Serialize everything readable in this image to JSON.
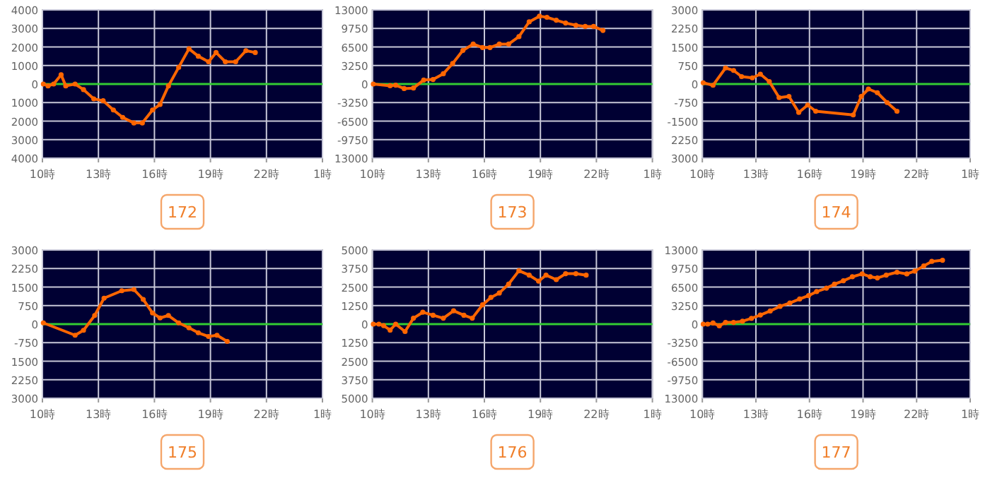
{
  "chart_data": [
    {
      "type": "line",
      "title": "172",
      "xlim": [
        "2000-01-01T10:00",
        "2000-01-02T01:00"
      ],
      "xticks": [
        {
          "value": "2000-01-01T10:00",
          "label": "10時"
        },
        {
          "value": "2000-01-01T13:00",
          "label": "13時"
        },
        {
          "value": "2000-01-01T16:00",
          "label": "16時"
        },
        {
          "value": "2000-01-01T19:00",
          "label": "19時"
        },
        {
          "value": "2000-01-01T22:00",
          "label": "22時"
        },
        {
          "value": "2000-01-02T01:00",
          "label": "1時"
        }
      ],
      "ylim": [
        -4000,
        4000
      ],
      "yticks": [
        {
          "value": -4000,
          "label": "4000"
        },
        {
          "value": -3000,
          "label": "3000"
        },
        {
          "value": -2000,
          "label": "2000"
        },
        {
          "value": -1000,
          "label": "1000"
        },
        0,
        1000,
        2000,
        3000,
        4000
      ],
      "grid": true,
      "marker": "circle",
      "ref_lines": [
        {
          "axis": "y",
          "value": 0,
          "color": "#33cc33"
        }
      ],
      "x": [
        "2000-01-01T10:03",
        "2000-01-01T10:18",
        "2000-01-01T10:36",
        "2000-01-01T11:00",
        "2000-01-01T11:15",
        "2000-01-01T11:45",
        "2000-01-01T12:12",
        "2000-01-01T12:45",
        "2000-01-01T13:15",
        "2000-01-01T13:48",
        "2000-01-01T14:18",
        "2000-01-01T14:54",
        "2000-01-01T15:21",
        "2000-01-01T15:54",
        "2000-01-01T16:18",
        "2000-01-01T16:45",
        "2000-01-01T17:18",
        "2000-01-01T17:51",
        "2000-01-01T18:21",
        "2000-01-01T18:54",
        "2000-01-01T19:18",
        "2000-01-01T19:48",
        "2000-01-01T20:21",
        "2000-01-01T20:54",
        "2000-01-01T21:24"
      ],
      "series": [
        {
          "color": "#ff6600",
          "values": [
            0,
            -100,
            0,
            500,
            -100,
            0,
            -300,
            -800,
            -900,
            -1400,
            -1800,
            -2100,
            -2100,
            -1400,
            -1100,
            -100,
            900,
            1900,
            1500,
            1200,
            1700,
            1200,
            1200,
            1800,
            1700
          ]
        }
      ]
    },
    {
      "type": "line",
      "title": "173",
      "xlim": [
        "2000-01-01T10:00",
        "2000-01-02T01:00"
      ],
      "xticks": [
        {
          "value": "2000-01-01T10:00",
          "label": "10時"
        },
        {
          "value": "2000-01-01T13:00",
          "label": "13時"
        },
        {
          "value": "2000-01-01T16:00",
          "label": "16時"
        },
        {
          "value": "2000-01-01T19:00",
          "label": "19時"
        },
        {
          "value": "2000-01-01T22:00",
          "label": "22時"
        },
        {
          "value": "2000-01-02T01:00",
          "label": "1時"
        }
      ],
      "ylim": [
        -13000,
        13000
      ],
      "yticks": [
        {
          "value": -13000,
          "label": "13000"
        },
        -9750,
        -6500,
        -3250,
        0,
        3250,
        6500,
        9750,
        13000
      ],
      "grid": true,
      "marker": "circle",
      "ref_lines": [
        {
          "axis": "y",
          "value": 0,
          "color": "#33cc33"
        }
      ],
      "x": [
        "2000-01-01T10:03",
        "2000-01-01T10:57",
        "2000-01-01T11:15",
        "2000-01-01T11:42",
        "2000-01-01T12:12",
        "2000-01-01T12:45",
        "2000-01-01T13:15",
        "2000-01-01T13:48",
        "2000-01-01T14:18",
        "2000-01-01T14:51",
        "2000-01-01T15:24",
        "2000-01-01T15:54",
        "2000-01-01T16:18",
        "2000-01-01T16:48",
        "2000-01-01T17:18",
        "2000-01-01T17:51",
        "2000-01-01T18:24",
        "2000-01-01T18:57",
        "2000-01-01T19:21",
        "2000-01-01T19:51",
        "2000-01-01T20:21",
        "2000-01-01T20:54",
        "2000-01-01T21:24",
        "2000-01-01T21:51",
        "2000-01-01T22:21"
      ],
      "series": [
        {
          "color": "#ff6600",
          "values": [
            0,
            -300,
            -200,
            -800,
            -700,
            700,
            800,
            1800,
            3600,
            5900,
            7000,
            6400,
            6400,
            7000,
            7000,
            8300,
            10900,
            11900,
            11700,
            11200,
            10700,
            10300,
            10100,
            10100,
            9400
          ]
        }
      ]
    },
    {
      "type": "line",
      "title": "174",
      "xlim": [
        "2000-01-01T10:00",
        "2000-01-02T01:00"
      ],
      "xticks": [
        {
          "value": "2000-01-01T10:00",
          "label": "10時"
        },
        {
          "value": "2000-01-01T13:00",
          "label": "13時"
        },
        {
          "value": "2000-01-01T16:00",
          "label": "16時"
        },
        {
          "value": "2000-01-01T19:00",
          "label": "19時"
        },
        {
          "value": "2000-01-01T22:00",
          "label": "22時"
        },
        {
          "value": "2000-01-02T01:00",
          "label": "1時"
        }
      ],
      "ylim": [
        -3000,
        3000
      ],
      "yticks": [
        {
          "value": -3000,
          "label": "3000"
        },
        {
          "value": -2250,
          "label": "2250"
        },
        -1500,
        -750,
        0,
        750,
        1500,
        2250,
        3000
      ],
      "grid": true,
      "marker": "circle",
      "ref_lines": [
        {
          "axis": "y",
          "value": 0,
          "color": "#33cc33"
        }
      ],
      "x": [
        "2000-01-01T10:03",
        "2000-01-01T10:36",
        "2000-01-01T11:18",
        "2000-01-01T11:45",
        "2000-01-01T12:12",
        "2000-01-01T12:48",
        "2000-01-01T13:15",
        "2000-01-01T13:45",
        "2000-01-01T14:18",
        "2000-01-01T14:51",
        "2000-01-01T15:24",
        "2000-01-01T15:54",
        "2000-01-01T16:21",
        "2000-01-01T18:27",
        "2000-01-01T18:54",
        "2000-01-01T19:18",
        "2000-01-01T19:48",
        "2000-01-01T20:21",
        "2000-01-01T20:54"
      ],
      "series": [
        {
          "color": "#ff6600",
          "values": [
            50,
            -50,
            650,
            550,
            300,
            250,
            400,
            100,
            -550,
            -500,
            -1150,
            -850,
            -1100,
            -1250,
            -500,
            -200,
            -350,
            -750,
            -1100
          ]
        }
      ]
    },
    {
      "type": "line",
      "title": "175",
      "xlim": [
        "2000-01-01T10:00",
        "2000-01-02T01:00"
      ],
      "xticks": [
        {
          "value": "2000-01-01T10:00",
          "label": "10時"
        },
        {
          "value": "2000-01-01T13:00",
          "label": "13時"
        },
        {
          "value": "2000-01-01T16:00",
          "label": "16時"
        },
        {
          "value": "2000-01-01T19:00",
          "label": "19時"
        },
        {
          "value": "2000-01-01T22:00",
          "label": "22時"
        },
        {
          "value": "2000-01-02T01:00",
          "label": "1時"
        }
      ],
      "ylim": [
        -3000,
        3000
      ],
      "yticks": [
        {
          "value": -3000,
          "label": "3000"
        },
        {
          "value": -2250,
          "label": "2250"
        },
        {
          "value": -1500,
          "label": "1500"
        },
        -750,
        0,
        750,
        1500,
        2250,
        3000
      ],
      "grid": true,
      "marker": "circle",
      "ref_lines": [
        {
          "axis": "y",
          "value": 0,
          "color": "#33cc33"
        }
      ],
      "x": [
        "2000-01-01T10:03",
        "2000-01-01T11:45",
        "2000-01-01T12:12",
        "2000-01-01T12:48",
        "2000-01-01T13:18",
        "2000-01-01T14:15",
        "2000-01-01T14:54",
        "2000-01-01T15:24",
        "2000-01-01T15:54",
        "2000-01-01T16:18",
        "2000-01-01T16:45",
        "2000-01-01T17:18",
        "2000-01-01T17:51",
        "2000-01-01T18:21",
        "2000-01-01T18:54",
        "2000-01-01T19:21",
        "2000-01-01T19:54"
      ],
      "series": [
        {
          "color": "#ff6600",
          "values": [
            50,
            -450,
            -250,
            350,
            1050,
            1350,
            1400,
            1000,
            450,
            250,
            350,
            50,
            -150,
            -350,
            -500,
            -450,
            -700
          ]
        }
      ]
    },
    {
      "type": "line",
      "title": "176",
      "xlim": [
        "2000-01-01T10:00",
        "2000-01-02T01:00"
      ],
      "xticks": [
        {
          "value": "2000-01-01T10:00",
          "label": "10時"
        },
        {
          "value": "2000-01-01T13:00",
          "label": "13時"
        },
        {
          "value": "2000-01-01T16:00",
          "label": "16時"
        },
        {
          "value": "2000-01-01T19:00",
          "label": "19時"
        },
        {
          "value": "2000-01-01T22:00",
          "label": "22時"
        },
        {
          "value": "2000-01-02T01:00",
          "label": "1時"
        }
      ],
      "ylim": [
        -5000,
        5000
      ],
      "yticks": [
        {
          "value": -5000,
          "label": "5000"
        },
        {
          "value": -3750,
          "label": "3750"
        },
        {
          "value": -2500,
          "label": "2500"
        },
        {
          "value": -1250,
          "label": "1250"
        },
        0,
        1250,
        2500,
        3750,
        5000
      ],
      "grid": true,
      "marker": "circle",
      "ref_lines": [
        {
          "axis": "y",
          "value": 0,
          "color": "#33cc33"
        }
      ],
      "x": [
        "2000-01-01T10:03",
        "2000-01-01T10:21",
        "2000-01-01T10:36",
        "2000-01-01T10:57",
        "2000-01-01T11:15",
        "2000-01-01T11:45",
        "2000-01-01T12:12",
        "2000-01-01T12:42",
        "2000-01-01T13:15",
        "2000-01-01T13:48",
        "2000-01-01T14:21",
        "2000-01-01T14:54",
        "2000-01-01T15:21",
        "2000-01-01T15:54",
        "2000-01-01T16:21",
        "2000-01-01T16:48",
        "2000-01-01T17:18",
        "2000-01-01T17:51",
        "2000-01-01T18:24",
        "2000-01-01T18:54",
        "2000-01-01T19:18",
        "2000-01-01T19:51",
        "2000-01-01T20:21",
        "2000-01-01T20:54",
        "2000-01-01T21:27"
      ],
      "series": [
        {
          "color": "#ff6600",
          "values": [
            0,
            0,
            -100,
            -400,
            0,
            -500,
            400,
            800,
            600,
            400,
            900,
            600,
            400,
            1300,
            1800,
            2100,
            2700,
            3600,
            3300,
            2900,
            3300,
            3000,
            3400,
            3400,
            3300
          ]
        }
      ]
    },
    {
      "type": "line",
      "title": "177",
      "xlim": [
        "2000-01-01T10:00",
        "2000-01-02T01:00"
      ],
      "xticks": [
        {
          "value": "2000-01-01T10:00",
          "label": "10時"
        },
        {
          "value": "2000-01-01T13:00",
          "label": "13時"
        },
        {
          "value": "2000-01-01T16:00",
          "label": "16時"
        },
        {
          "value": "2000-01-01T19:00",
          "label": "19時"
        },
        {
          "value": "2000-01-01T22:00",
          "label": "22時"
        },
        {
          "value": "2000-01-02T01:00",
          "label": "1時"
        }
      ],
      "ylim": [
        -13000,
        13000
      ],
      "yticks": [
        {
          "value": -13000,
          "label": "13000"
        },
        -9750,
        -6500,
        -3250,
        0,
        3250,
        6500,
        9750,
        13000
      ],
      "grid": true,
      "marker": "circle",
      "ref_lines": [
        {
          "axis": "y",
          "value": 0,
          "color": "#33cc33"
        }
      ],
      "x": [
        "2000-01-01T10:03",
        "2000-01-01T10:18",
        "2000-01-01T10:36",
        "2000-01-01T10:57",
        "2000-01-01T11:18",
        "2000-01-01T11:45",
        "2000-01-01T12:15",
        "2000-01-01T12:45",
        "2000-01-01T13:15",
        "2000-01-01T13:48",
        "2000-01-01T14:21",
        "2000-01-01T14:54",
        "2000-01-01T15:27",
        "2000-01-01T15:57",
        "2000-01-01T16:24",
        "2000-01-01T16:57",
        "2000-01-01T17:24",
        "2000-01-01T17:54",
        "2000-01-01T18:24",
        "2000-01-01T18:57",
        "2000-01-01T19:24",
        "2000-01-01T19:48",
        "2000-01-01T20:18",
        "2000-01-01T20:54",
        "2000-01-01T21:27",
        "2000-01-01T21:54",
        "2000-01-01T22:24",
        "2000-01-01T22:51",
        "2000-01-01T23:27"
      ],
      "series": [
        {
          "color": "#ff6600",
          "values": [
            0,
            0,
            200,
            -300,
            300,
            300,
            500,
            1000,
            1600,
            2300,
            3100,
            3700,
            4400,
            5000,
            5700,
            6300,
            7000,
            7600,
            8300,
            8800,
            8300,
            8100,
            8600,
            9100,
            8800,
            9300,
            10200,
            11000,
            11200
          ]
        }
      ]
    }
  ]
}
